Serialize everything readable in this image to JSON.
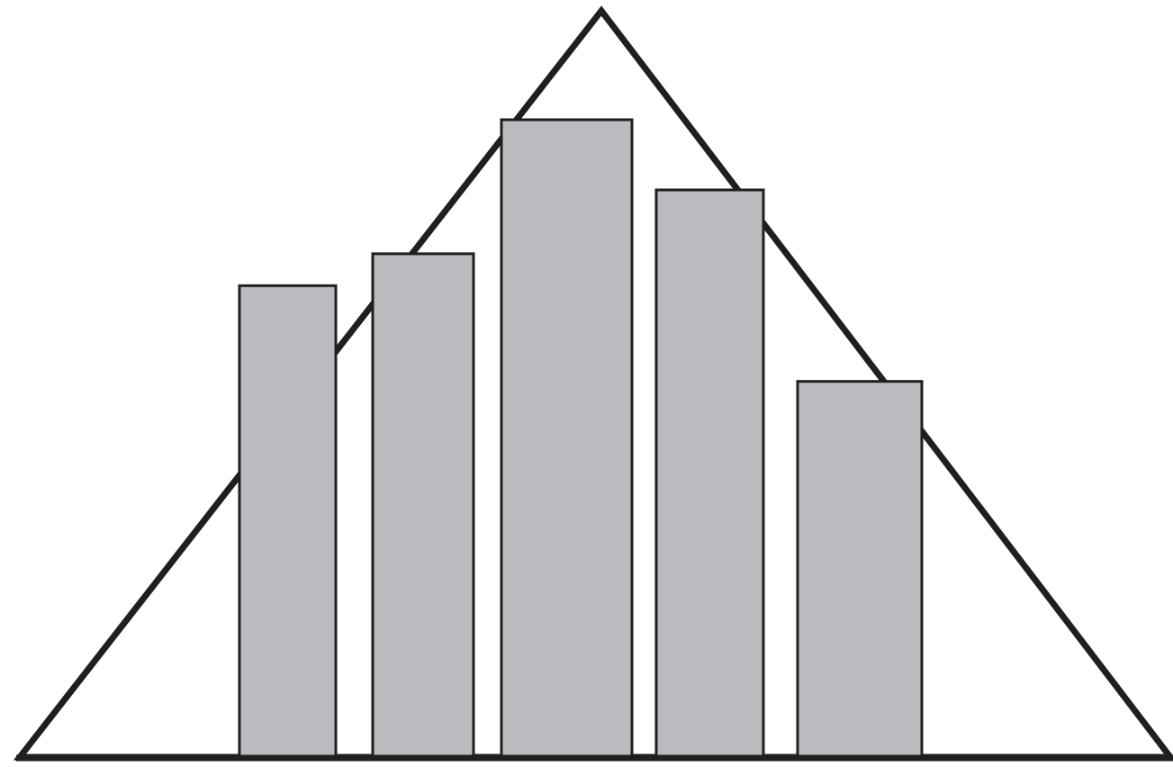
{
  "figure": {
    "background_color": "#ffffff",
    "stroke_color": "#1f1f1f",
    "bar_fill_color": "#babbbf",
    "bar_heights_relative": [
      0.74,
      0.79,
      1.0,
      0.89,
      0.59
    ]
  }
}
